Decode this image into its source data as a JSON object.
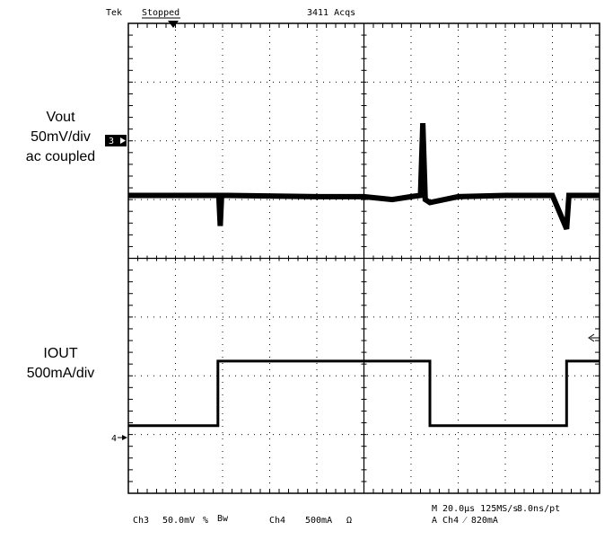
{
  "header": {
    "brand": "Tek",
    "status": "Stopped",
    "acqs": "3411 Acqs"
  },
  "labels": {
    "vout": [
      "Vout",
      "50mV/div",
      "ac coupled"
    ],
    "iout": [
      "IOUT",
      "500mA/div"
    ]
  },
  "markers": {
    "ch3": "3",
    "ch4": "4"
  },
  "footer": {
    "ch3_name": "Ch3",
    "ch3_scale": "50.0mV",
    "ch3_coupling": "% ",
    "ch3_bw": "Bw",
    "ch4_name": "Ch4",
    "ch4_scale": "500mA",
    "ch4_coupling": "Ω",
    "timebase": "M 20.0µs 125MS/s",
    "resolution": "8.0ns/pt",
    "trigger": "A  Ch4  ⁄  820mA"
  },
  "chart_data": {
    "type": "line",
    "divisions": {
      "x": 10,
      "y": 8
    },
    "xlim": [
      0,
      10
    ],
    "ylim": [
      -4,
      4
    ],
    "grid": true,
    "series": [
      {
        "name": "Ch3",
        "x": [
          0,
          1.92,
          1.95,
          1.98,
          2.1,
          4.0,
          5.0,
          5.6,
          6.0,
          6.2,
          6.25,
          6.3,
          6.4,
          7.0,
          8.0,
          9.0,
          9.3,
          9.35,
          9.4,
          9.6,
          10.0
        ],
        "y": [
          1.07,
          1.07,
          0.55,
          1.07,
          1.07,
          1.05,
          1.05,
          1.0,
          1.05,
          1.07,
          2.3,
          1.0,
          0.95,
          1.05,
          1.07,
          1.07,
          0.5,
          1.07,
          1.07,
          1.07,
          1.07
        ]
      },
      {
        "name": "Ch4",
        "x": [
          0,
          1.9,
          1.9,
          6.4,
          6.4,
          9.3,
          9.3,
          10.0
        ],
        "y": [
          -2.85,
          -2.85,
          -1.75,
          -1.75,
          -2.85,
          -2.85,
          -1.75,
          -1.75
        ]
      }
    ]
  }
}
